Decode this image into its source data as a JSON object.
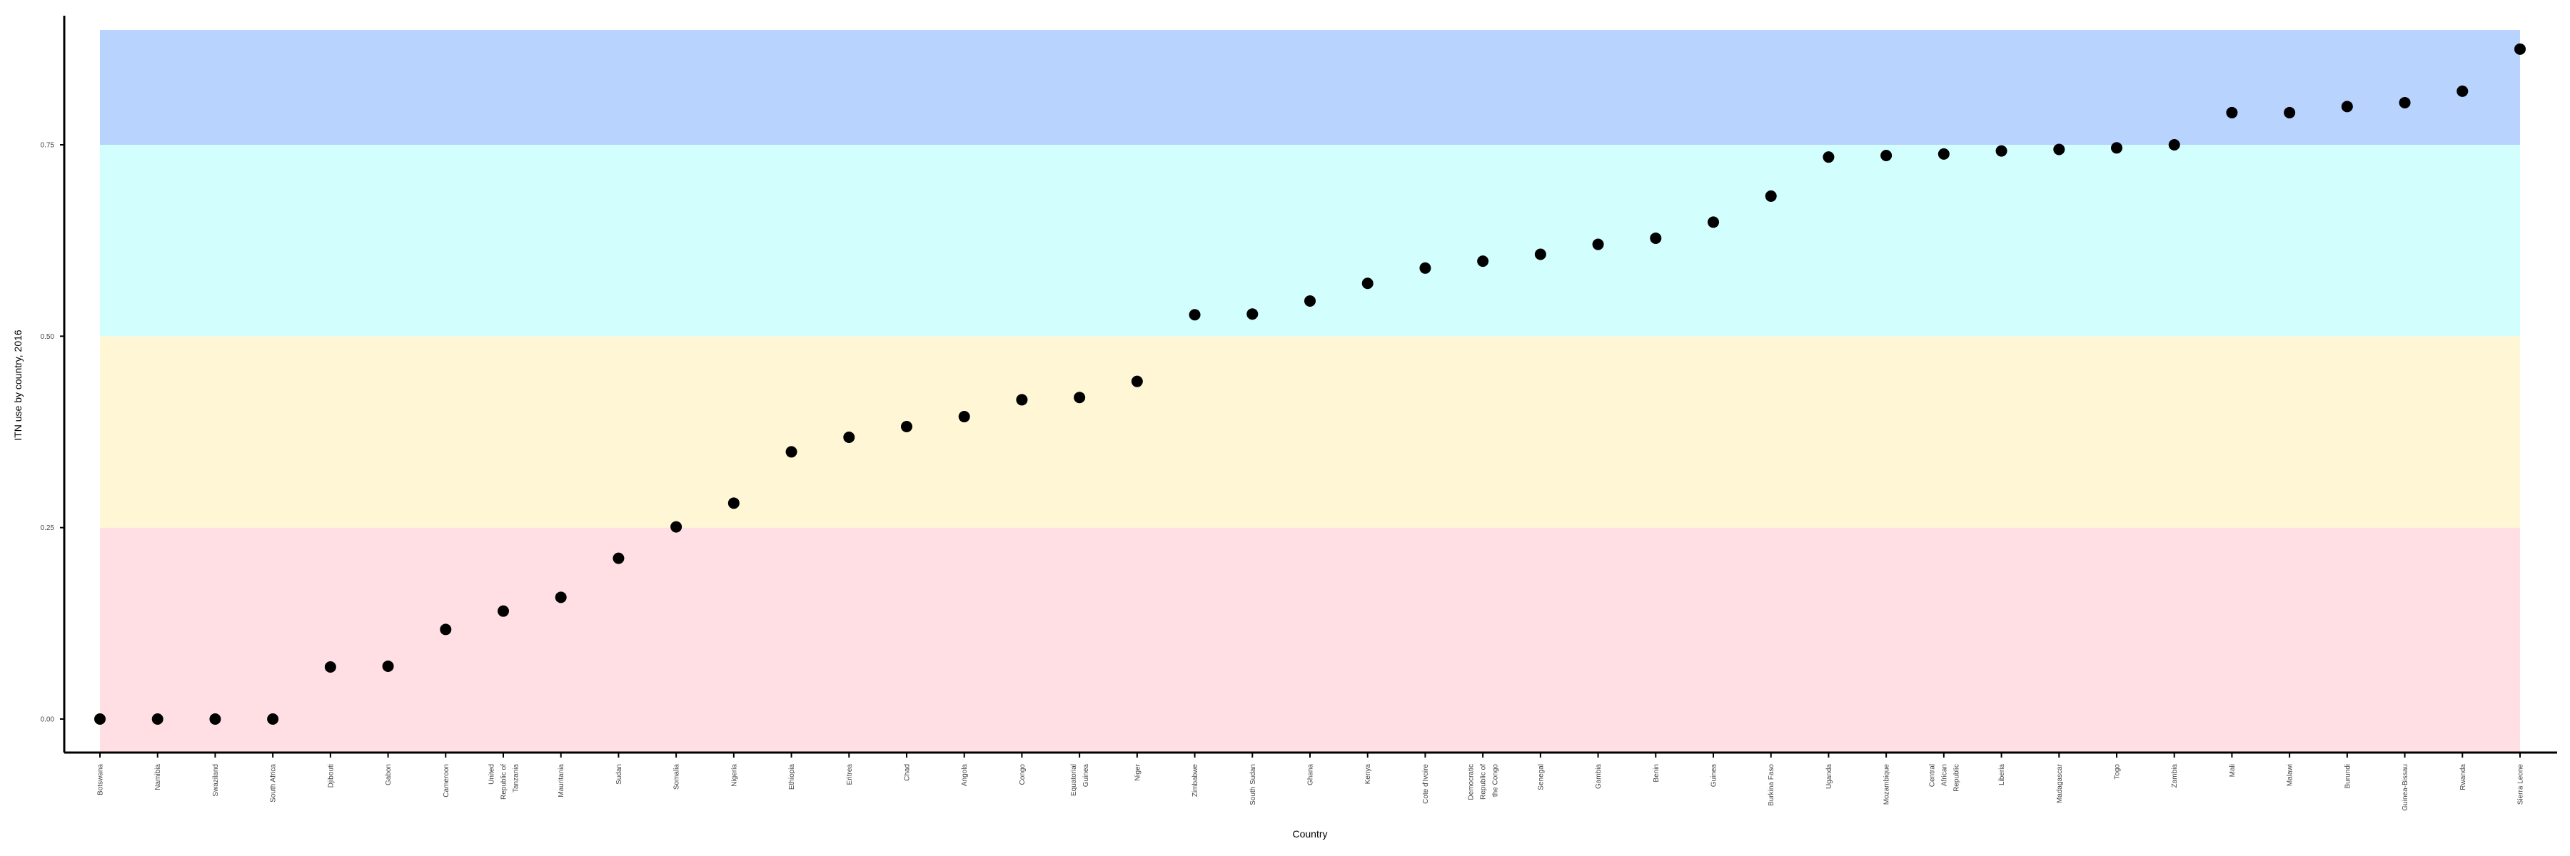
{
  "chart_data": {
    "type": "scatter",
    "title": "",
    "xlabel": "Country",
    "ylabel": "ITN use by country, 2016",
    "ylim": [
      -0.06,
      0.9
    ],
    "yticks": [
      0.0,
      0.25,
      0.5,
      0.75
    ],
    "ytick_labels": [
      "0.00",
      "0.25",
      "0.50",
      "0.75"
    ],
    "grid": false,
    "legend": "none",
    "x_label_orientation": "vertical",
    "bands": [
      {
        "from": 0.0,
        "to": 0.25,
        "color": "#ffdfe4"
      },
      {
        "from": 0.25,
        "to": 0.5,
        "color": "#fef6d4"
      },
      {
        "from": 0.5,
        "to": 0.75,
        "color": "#d3fefe"
      },
      {
        "from": 0.75,
        "to": 0.9,
        "color": "#b8d3fd"
      }
    ],
    "point_color": "#000000",
    "categories": [
      [
        "Botswana"
      ],
      [
        "Namibia"
      ],
      [
        "Swaziland"
      ],
      [
        "South Africa"
      ],
      [
        "Djibouti"
      ],
      [
        "Gabon"
      ],
      [
        "Cameroon"
      ],
      [
        "United",
        "Republic of",
        "Tanzania"
      ],
      [
        "Mauritania"
      ],
      [
        "Sudan"
      ],
      [
        "Somalia"
      ],
      [
        "Nigeria"
      ],
      [
        "Ethiopia"
      ],
      [
        "Eritrea"
      ],
      [
        "Chad"
      ],
      [
        "Angola"
      ],
      [
        "Congo"
      ],
      [
        "Equatorial",
        "Guinea"
      ],
      [
        "Niger"
      ],
      [
        "Zimbabwe"
      ],
      [
        "South Sudan"
      ],
      [
        "Ghana"
      ],
      [
        "Kenya"
      ],
      [
        "Cote d'Ivoire"
      ],
      [
        "Democratic",
        "Republic of",
        "the Congo"
      ],
      [
        "Senegal"
      ],
      [
        "Gambia"
      ],
      [
        "Benin"
      ],
      [
        "Guinea"
      ],
      [
        "Burkina Faso"
      ],
      [
        "Uganda"
      ],
      [
        "Mozambique"
      ],
      [
        "Central",
        "African",
        "Republic"
      ],
      [
        "Liberia"
      ],
      [
        "Madagascar"
      ],
      [
        "Togo"
      ],
      [
        "Zambia"
      ],
      [
        "Mali"
      ],
      [
        "Malawi"
      ],
      [
        "Burundi"
      ],
      [
        "Guinea-Bissau"
      ],
      [
        "Rwanda"
      ],
      [
        "Sierra Leone"
      ]
    ],
    "values": [
      0.0,
      0.0,
      0.0,
      0.0,
      0.068,
      0.069,
      0.117,
      0.141,
      0.159,
      0.21,
      0.251,
      0.282,
      0.349,
      0.368,
      0.382,
      0.395,
      0.417,
      0.42,
      0.441,
      0.528,
      0.529,
      0.546,
      0.569,
      0.589,
      0.598,
      0.607,
      0.62,
      0.628,
      0.649,
      0.683,
      0.734,
      0.736,
      0.738,
      0.742,
      0.744,
      0.746,
      0.75,
      0.792,
      0.792,
      0.8,
      0.805,
      0.82,
      0.875
    ]
  }
}
